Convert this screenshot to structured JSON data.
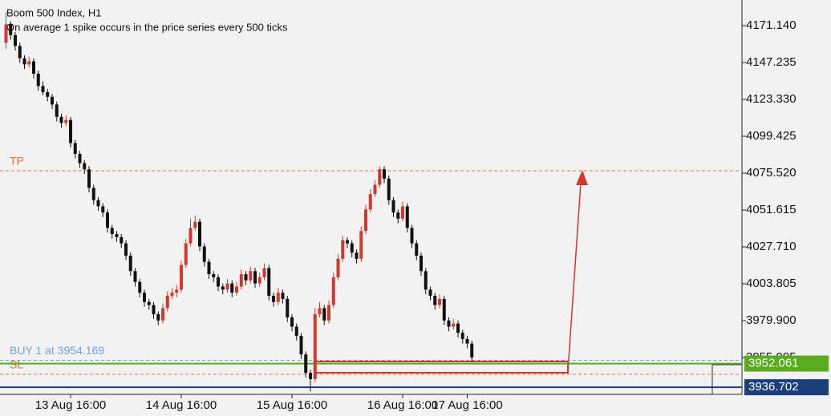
{
  "chart_data": {
    "type": "candlestick",
    "title": "Boom 500 Index, H1",
    "subtitle": "On average 1 spike occurs in the price series every 500 ticks",
    "up_color": "#d0392b",
    "down_color": "#111111",
    "ylim": [
      3932.09,
      4187.77
    ],
    "yticks": [
      {
        "value": 4171.14,
        "label": "4171.140"
      },
      4147.235,
      {
        "value": 4123.33,
        "label": "4123.330"
      },
      4099.425,
      {
        "value": 4075.52,
        "label": "4075.520"
      },
      4051.615,
      {
        "value": 4027.71,
        "label": "4027.710"
      },
      4003.805,
      {
        "value": 3979.9,
        "label": "3979.900"
      },
      3955.995
    ],
    "categories": [
      null,
      null,
      null,
      null,
      null,
      null,
      null,
      null,
      null,
      null,
      null,
      null,
      null,
      null,
      "13 Aug 16:00",
      null,
      null,
      null,
      null,
      null,
      null,
      null,
      null,
      null,
      null,
      null,
      null,
      null,
      null,
      null,
      null,
      null,
      null,
      null,
      null,
      null,
      null,
      null,
      "14 Aug 16:00",
      null,
      null,
      null,
      null,
      null,
      null,
      null,
      null,
      null,
      null,
      null,
      null,
      null,
      null,
      null,
      null,
      null,
      null,
      null,
      null,
      null,
      null,
      null,
      "15 Aug 16:00",
      null,
      null,
      null,
      null,
      null,
      null,
      null,
      null,
      null,
      null,
      null,
      null,
      null,
      null,
      null,
      null,
      null,
      null,
      null,
      null,
      null,
      null,
      null,
      "16 Aug 16:00",
      null,
      null,
      null,
      null,
      null,
      null,
      null,
      null,
      null,
      null,
      null,
      null,
      null,
      "17 Aug 16:00"
    ],
    "candles": [
      [
        4160,
        4180,
        4156,
        4172
      ],
      [
        4172,
        4174,
        4162,
        4165
      ],
      [
        4165,
        4167,
        4155,
        4158
      ],
      [
        4158,
        4160,
        4147,
        4150
      ],
      [
        4150,
        4152,
        4143,
        4146
      ],
      [
        4146,
        4151,
        4144,
        4148
      ],
      [
        4148,
        4150,
        4137,
        4140
      ],
      [
        4140,
        4142,
        4129,
        4132
      ],
      [
        4132,
        4135,
        4126,
        4128
      ],
      [
        4128,
        4130,
        4122,
        4125
      ],
      [
        4125,
        4127,
        4117,
        4120
      ],
      [
        4120,
        4122,
        4109,
        4112
      ],
      [
        4112,
        4114,
        4105,
        4108
      ],
      [
        4108,
        4113,
        4106,
        4110
      ],
      [
        4110,
        4112,
        4092,
        4095
      ],
      [
        4095,
        4097,
        4085,
        4088
      ],
      [
        4088,
        4090,
        4079,
        4082
      ],
      [
        4082,
        4084,
        4075,
        4078
      ],
      [
        4078,
        4080,
        4063,
        4066
      ],
      [
        4066,
        4068,
        4055,
        4058
      ],
      [
        4058,
        4060,
        4051,
        4054
      ],
      [
        4054,
        4056,
        4047,
        4050
      ],
      [
        4050,
        4052,
        4037,
        4040
      ],
      [
        4040,
        4042,
        4033,
        4036
      ],
      [
        4036,
        4038,
        4031,
        4034
      ],
      [
        4034,
        4036,
        4027,
        4030
      ],
      [
        4030,
        4032,
        4019,
        4022
      ],
      [
        4022,
        4024,
        4009,
        4012
      ],
      [
        4012,
        4014,
        4002,
        4005
      ],
      [
        4005,
        4007,
        3995,
        3998
      ],
      [
        3998,
        4000,
        3989,
        3992
      ],
      [
        3992,
        3994,
        3987,
        3990
      ],
      [
        3990,
        3992,
        3981,
        3984
      ],
      [
        3984,
        3986,
        3977,
        3980
      ],
      [
        3980,
        3991,
        3978,
        3988
      ],
      [
        3988,
        3999,
        3986,
        3996
      ],
      [
        3996,
        4001,
        3994,
        3998
      ],
      [
        3998,
        4003,
        3995,
        4000
      ],
      [
        4000,
        4019,
        3998,
        4016
      ],
      [
        4016,
        4033,
        4014,
        4030
      ],
      [
        4030,
        4046,
        4028,
        4040
      ],
      [
        4040,
        4048,
        4038,
        4044
      ],
      [
        4044,
        4046,
        4025,
        4028
      ],
      [
        4028,
        4030,
        4015,
        4018
      ],
      [
        4018,
        4020,
        4007,
        4010
      ],
      [
        4010,
        4012,
        4005,
        4008
      ],
      [
        4008,
        4010,
        3999,
        4002
      ],
      [
        4002,
        4004,
        3997,
        4000
      ],
      [
        4000,
        4007,
        3998,
        4004
      ],
      [
        4004,
        4006,
        3995,
        3998
      ],
      [
        3998,
        4005,
        3996,
        4002
      ],
      [
        4002,
        4013,
        4000,
        4010
      ],
      [
        4010,
        4012,
        4003,
        4006
      ],
      [
        4006,
        4015,
        4004,
        4012
      ],
      [
        4012,
        4014,
        4001,
        4004
      ],
      [
        4004,
        4011,
        4002,
        4008
      ],
      [
        4008,
        4017,
        4006,
        4014
      ],
      [
        4014,
        4016,
        3993,
        3996
      ],
      [
        3996,
        3998,
        3989,
        3992
      ],
      [
        3992,
        4001,
        3990,
        3998
      ],
      [
        3998,
        4000,
        3991,
        3994
      ],
      [
        3994,
        3996,
        3979,
        3982
      ],
      [
        3982,
        3984,
        3973,
        3976
      ],
      [
        3976,
        3978,
        3967,
        3970
      ],
      [
        3970,
        3972,
        3955,
        3958
      ],
      [
        3958,
        3960,
        3943,
        3946
      ],
      [
        3946,
        3948,
        3934,
        3942
      ],
      [
        3942,
        3988,
        3940,
        3984
      ],
      [
        3984,
        3992,
        3982,
        3988
      ],
      [
        3988,
        3990,
        3977,
        3980
      ],
      [
        3980,
        3993,
        3978,
        3990
      ],
      [
        3990,
        4011,
        3988,
        4008
      ],
      [
        4008,
        4023,
        4006,
        4020
      ],
      [
        4020,
        4035,
        4018,
        4032
      ],
      [
        4032,
        4034,
        4027,
        4030
      ],
      [
        4030,
        4032,
        4021,
        4024
      ],
      [
        4024,
        4026,
        4017,
        4020
      ],
      [
        4020,
        4041,
        4018,
        4038
      ],
      [
        4038,
        4055,
        4036,
        4052
      ],
      [
        4052,
        4065,
        4050,
        4062
      ],
      [
        4062,
        4071,
        4060,
        4068
      ],
      [
        4068,
        4080,
        4066,
        4078
      ],
      [
        4078,
        4080,
        4069,
        4072
      ],
      [
        4072,
        4074,
        4055,
        4058
      ],
      [
        4058,
        4060,
        4047,
        4050
      ],
      [
        4050,
        4052,
        4043,
        4046
      ],
      [
        4046,
        4057,
        4044,
        4054
      ],
      [
        4054,
        4056,
        4037,
        4040
      ],
      [
        4040,
        4042,
        4027,
        4030
      ],
      [
        4030,
        4032,
        4019,
        4022
      ],
      [
        4022,
        4024,
        4009,
        4012
      ],
      [
        4012,
        4014,
        3997,
        4000
      ],
      [
        4000,
        4002,
        3993,
        3996
      ],
      [
        3996,
        3998,
        3987,
        3990
      ],
      [
        3990,
        3997,
        3988,
        3994
      ],
      [
        3994,
        3996,
        3977,
        3980
      ],
      [
        3980,
        3982,
        3973,
        3976
      ],
      [
        3976,
        3981,
        3974,
        3978
      ],
      [
        3978,
        3980,
        3969,
        3972
      ],
      [
        3972,
        3974,
        3965,
        3968
      ],
      [
        3968,
        3970,
        3962,
        3965
      ],
      [
        3965,
        3967,
        3953,
        3956
      ],
      null,
      null,
      null,
      null,
      null,
      null,
      null,
      null,
      null
    ],
    "levels": [
      {
        "name": "TP",
        "value": 4077.1,
        "color": "#e8703a",
        "style": "dashed"
      },
      {
        "name": "BUY 1 at 3954.169",
        "value": 3954.169,
        "color": "#6aa5d8",
        "style": "dashed"
      },
      {
        "name": "SL",
        "value": 3945.1,
        "color": "#e8703a",
        "style": "dashed"
      },
      {
        "value": 3952.061,
        "color": "#5aab1e",
        "style": "solid",
        "tag": true
      },
      {
        "value": 3936.702,
        "color": "#1b3f78",
        "style": "solid",
        "tag": true
      }
    ]
  }
}
